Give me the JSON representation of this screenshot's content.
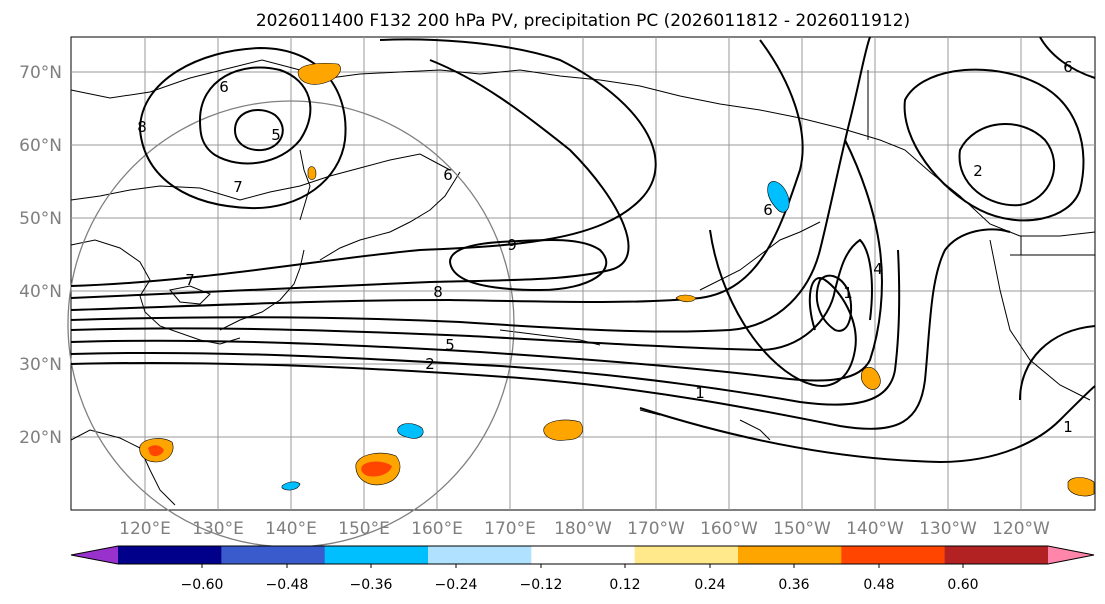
{
  "title": "2026011400 F132 200 hPa PV, precipitation PC (2026011812 - 2026011912)",
  "lat_labels": [
    "70°N",
    "60°N",
    "50°N",
    "40°N",
    "30°N",
    "20°N"
  ],
  "lon_labels": [
    "120°E",
    "130°E",
    "140°E",
    "150°E",
    "160°E",
    "170°E",
    "180°W",
    "170°W",
    "160°W",
    "150°W",
    "140°W",
    "130°W",
    "120°W"
  ],
  "contour_labels": [
    "6",
    "5",
    "8",
    "7",
    "6",
    "9",
    "8",
    "7",
    "5",
    "2",
    "1",
    "6",
    "4",
    "1",
    "2",
    "6",
    "1"
  ],
  "colorbar": {
    "colors": [
      "#9932cc",
      "#00008b",
      "#3a5bcc",
      "#00bfff",
      "#b0e2ff",
      "#ffffff",
      "#ffe98a",
      "#ffa500",
      "#ff4500",
      "#b22222",
      "#ff85aa"
    ],
    "ticks": [
      "−0.60",
      "−0.48",
      "−0.36",
      "−0.24",
      "−0.12",
      "0.12",
      "0.24",
      "0.36",
      "0.48",
      "0.60"
    ]
  },
  "colors": {
    "positive_light": "#ffa500",
    "positive_strong": "#ff4500",
    "negative": "#00bfff",
    "negative_light": "#b0e2ff",
    "grid": "#9a9a9a",
    "circle": "#808080"
  }
}
